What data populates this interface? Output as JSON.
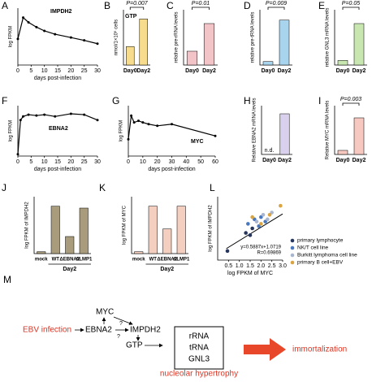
{
  "chart_data": [
    {
      "panel": "A",
      "type": "line",
      "label": "IMPDH2",
      "ylabel": "log FPKM",
      "xlabel": "days post-infection",
      "xlim": [
        0,
        30
      ],
      "xticks": [
        0,
        5,
        10,
        15,
        20,
        25,
        30
      ],
      "ylim": [
        0,
        1.2
      ],
      "x": [
        0,
        2,
        4,
        7,
        10,
        14,
        20,
        25,
        30
      ],
      "series": [
        {
          "color": "#000000",
          "values": [
            0.55,
            1.0,
            0.9,
            0.8,
            0.72,
            0.65,
            0.58,
            0.52,
            0.45
          ]
        }
      ]
    },
    {
      "panel": "B",
      "type": "bar",
      "label": "GTP",
      "ylabel": "nmol/1×10⁶ cells",
      "annotation": "P=0.007",
      "categories": [
        "Day0",
        "Day2"
      ],
      "values": [
        1.0,
        2.5
      ],
      "color": "#f6dc8c",
      "ylim": [
        0,
        3
      ]
    },
    {
      "panel": "C",
      "type": "bar",
      "ylabel": "relative pre-rRNA levels",
      "annotation": "P=0.01",
      "categories": [
        "Day0",
        "Day2"
      ],
      "values": [
        1.0,
        3.0
      ],
      "color": "#f2c4c8",
      "ylim": [
        0,
        4
      ]
    },
    {
      "panel": "D",
      "type": "bar",
      "ylabel": "relative pre-tRNA levels",
      "annotation": "P=0.009",
      "categories": [
        "Day0",
        "Day2"
      ],
      "values": [
        1.0,
        13.0
      ],
      "color": "#a8d4ee",
      "ylim": [
        0,
        16
      ]
    },
    {
      "panel": "E",
      "type": "bar",
      "ylabel": "relative GNL3 mRNA levels",
      "annotation": "P=0.05",
      "categories": [
        "Day0",
        "Day2"
      ],
      "values": [
        1.0,
        9.0
      ],
      "color": "#c8e6b0",
      "ylim": [
        0,
        12
      ]
    },
    {
      "panel": "F",
      "type": "line",
      "label": "EBNA2",
      "ylabel": "log FPKM",
      "xlabel": "days post-infection",
      "xlim": [
        0,
        30
      ],
      "xticks": [
        0,
        5,
        10,
        15,
        20,
        25,
        30
      ],
      "ylim": [
        0,
        2.8
      ],
      "x": [
        0,
        1,
        2,
        4,
        7,
        10,
        14,
        20,
        25,
        30
      ],
      "series": [
        {
          "color": "#000000",
          "values": [
            0.1,
            2.0,
            2.2,
            2.3,
            2.25,
            2.3,
            2.2,
            2.35,
            2.3,
            2.0
          ]
        }
      ]
    },
    {
      "panel": "G",
      "type": "line",
      "label": "MYC",
      "ylabel": "log FPKM",
      "xlabel": "days post-infection",
      "xlim": [
        0,
        60
      ],
      "xticks": [
        0,
        10,
        20,
        30,
        40,
        50,
        60
      ],
      "ylim": [
        0,
        3
      ],
      "x": [
        0,
        2,
        4,
        7,
        10,
        14,
        20,
        30,
        60
      ],
      "series": [
        {
          "color": "#000000",
          "values": [
            1.0,
            2.4,
            2.0,
            2.1,
            2.0,
            1.9,
            1.8,
            1.9,
            1.2
          ]
        }
      ]
    },
    {
      "panel": "H",
      "type": "bar",
      "ylabel": "Relative EBNA2 mRNA levels",
      "annotation_left": "n.d.",
      "categories": [
        "Day0",
        "Day2"
      ],
      "values": [
        null,
        10.0
      ],
      "color": "#d8d0ec",
      "ylim": [
        0,
        12
      ]
    },
    {
      "panel": "I",
      "type": "bar",
      "ylabel": "Relative MYC mRNA levels",
      "annotation": "P=0.003",
      "categories": [
        "Day0",
        "Day2"
      ],
      "values": [
        1.0,
        9.0
      ],
      "color": "#f6c8c0",
      "ylim": [
        0,
        12
      ]
    },
    {
      "panel": "J",
      "type": "bar",
      "ylabel": "log FPKM of IMPDH2",
      "group_label": "Day2",
      "categories": [
        "mock",
        "WT",
        "ΔEBNA2",
        "ΔLMP1"
      ],
      "values": [
        0.1,
        2.5,
        0.9,
        2.4
      ],
      "color": "#a89c7c",
      "ylim": [
        0,
        3
      ]
    },
    {
      "panel": "K",
      "type": "bar",
      "ylabel": "log FPKM of MYC",
      "group_label": "Day2",
      "categories": [
        "mock",
        "WT",
        "ΔEBNA2",
        "ΔLMP1"
      ],
      "values": [
        0.1,
        2.5,
        1.3,
        2.5
      ],
      "color": "#f4cfc0",
      "ylim": [
        0,
        3
      ]
    },
    {
      "panel": "L",
      "type": "scatter",
      "xlabel": "log FPKM of MYC",
      "ylabel": "log FPKM of IMPDH2",
      "xlim": [
        0,
        3
      ],
      "xticks": [
        {
          "value": 0.5,
          "label": "0.5"
        },
        {
          "value": 1,
          "label": "1.0"
        },
        {
          "value": 1.5,
          "label": "1.5"
        },
        {
          "value": 2,
          "label": "2.0"
        },
        {
          "value": 2.5,
          "label": "2.5"
        },
        {
          "value": 3,
          "label": "3.0"
        }
      ],
      "ylim": [
        0.8,
        3.6
      ],
      "trendline": {
        "slope": 0.5887,
        "intercept": 1.0719,
        "label": "y=0.5887x+1.0719"
      },
      "r_label": "R=0.69869",
      "series": [
        {
          "name": "primary lymphocyte",
          "color": "#27365e",
          "x": [
            0.45,
            1.3,
            1.5,
            1.6
          ],
          "values": [
            1.2,
            2.0,
            1.9,
            2.2
          ]
        },
        {
          "name": "NK/T cell line",
          "color": "#4a78bf",
          "x": [
            1.4,
            1.7,
            1.9,
            2.0,
            2.2
          ],
          "values": [
            2.4,
            2.6,
            2.3,
            2.7,
            2.5
          ]
        },
        {
          "name": "Burkitt lymphoma cell line",
          "color": "#a9b6cf",
          "x": [
            1.8,
            2.1,
            2.3,
            2.5
          ],
          "values": [
            2.5,
            2.8,
            2.6,
            2.9
          ]
        },
        {
          "name": "primary B cell+EBV",
          "color": "#d9a441",
          "x": [
            1.6,
            2.0,
            2.4,
            2.9
          ],
          "values": [
            2.7,
            2.4,
            2.8,
            3.2
          ]
        }
      ]
    }
  ],
  "diagram": {
    "panel": "M",
    "ebv": "EBV infection",
    "ebna2": "EBNA2",
    "myc": "MYC",
    "impdh2": "IMPDH2",
    "q1": "?",
    "q2": "?",
    "gtp": "GTP",
    "rrna": "rRNA",
    "trna": "tRNA",
    "gnl3": "GNL3",
    "hyper": "nucleolar hypertrophy",
    "immort": "immortalization"
  }
}
